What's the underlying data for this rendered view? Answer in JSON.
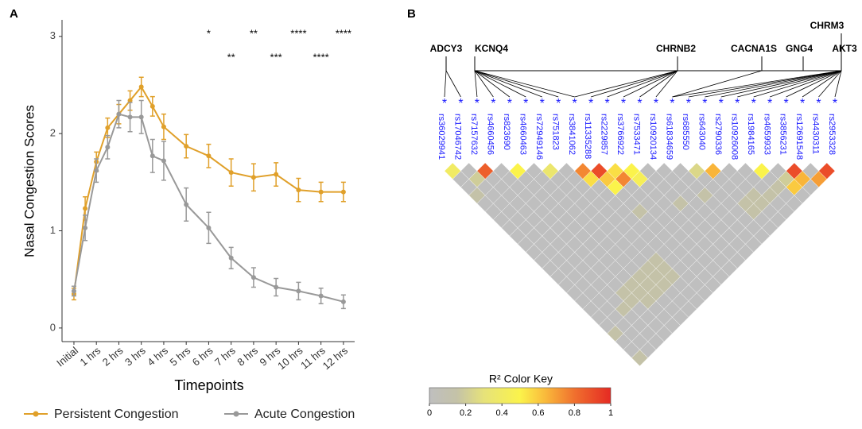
{
  "chart_data": [
    {
      "type": "line",
      "panel": "A",
      "ylabel": "Nasal Congestion Scores",
      "xlabel": "Timepoints",
      "x": [
        0,
        0.5,
        1,
        1.5,
        2,
        2.5,
        3,
        3.5,
        4,
        5,
        6,
        7,
        8,
        9,
        10,
        11,
        12
      ],
      "xlim": [
        -0.53,
        12.5
      ],
      "ylim": [
        -0.14,
        3.17
      ],
      "xticks": [
        {
          "value": 0,
          "label": "Initial"
        },
        {
          "value": 1,
          "label": "1 hrs"
        },
        {
          "value": 2,
          "label": "2 hrs"
        },
        {
          "value": 3,
          "label": "3 hrs"
        },
        {
          "value": 4,
          "label": "4 hrs"
        },
        {
          "value": 5,
          "label": "5 hrs"
        },
        {
          "value": 6,
          "label": "6 hrs"
        },
        {
          "value": 7,
          "label": "7 hrs"
        },
        {
          "value": 8,
          "label": "8 hrs"
        },
        {
          "value": 9,
          "label": "9 hrs"
        },
        {
          "value": 10,
          "label": "10 hrs"
        },
        {
          "value": 11,
          "label": "11 hrs"
        },
        {
          "value": 12,
          "label": "12 hrs"
        }
      ],
      "yticks": [
        0,
        1,
        2,
        3
      ],
      "series": [
        {
          "name": "Persistent Congestion",
          "color": "#e0a02a",
          "values": [
            0.35,
            1.23,
            1.71,
            2.06,
            2.2,
            2.34,
            2.48,
            2.28,
            2.07,
            1.87,
            1.77,
            1.6,
            1.55,
            1.58,
            1.42,
            1.4,
            1.4
          ],
          "errors": [
            0.06,
            0.12,
            0.1,
            0.1,
            0.1,
            0.1,
            0.1,
            0.1,
            0.13,
            0.12,
            0.12,
            0.14,
            0.14,
            0.12,
            0.12,
            0.1,
            0.1
          ]
        },
        {
          "name": "Acute Congestion",
          "color": "#999999",
          "values": [
            0.38,
            1.03,
            1.62,
            1.86,
            2.2,
            2.17,
            2.17,
            1.77,
            1.72,
            1.27,
            1.03,
            0.72,
            0.52,
            0.42,
            0.38,
            0.33,
            0.27
          ],
          "errors": [
            0.05,
            0.13,
            0.12,
            0.12,
            0.14,
            0.15,
            0.17,
            0.17,
            0.2,
            0.17,
            0.16,
            0.11,
            0.1,
            0.09,
            0.09,
            0.08,
            0.07
          ]
        }
      ],
      "annotations": [
        {
          "x": 6,
          "text": "*"
        },
        {
          "x": 7,
          "text": "**"
        },
        {
          "x": 8,
          "text": "**"
        },
        {
          "x": 9,
          "text": "***"
        },
        {
          "x": 10,
          "text": "****"
        },
        {
          "x": 11,
          "text": "****"
        },
        {
          "x": 12,
          "text": "****"
        }
      ]
    },
    {
      "type": "ld_heatmap",
      "panel": "B",
      "snps": [
        "rs36029941",
        "rs17046742",
        "rs7157632",
        "rs4660456",
        "rs823690",
        "rs4660463",
        "rs72949146",
        "rs751823",
        "rs3841062",
        "rs11335288",
        "rs2229857",
        "rs3766922",
        "rs7533471",
        "rs10920134",
        "rs61834659",
        "rs685550",
        "rs643040",
        "rs2790336",
        "rs10926008",
        "rs1984165",
        "rs4659933",
        "rs3856231",
        "rs12691548",
        "rs4430311",
        "rs2953328"
      ],
      "genes": [
        {
          "name": "ADCY3",
          "snps": [
            0,
            1
          ]
        },
        {
          "name": "KCNQ4",
          "snps": [
            2,
            3,
            4,
            5,
            6,
            7,
            8
          ]
        },
        {
          "name": "CHRNB2",
          "snps": [
            8,
            9,
            10,
            11,
            12,
            13
          ]
        },
        {
          "name": "CACNA1S",
          "snps": [
            14
          ]
        },
        {
          "name": "GNG4",
          "snps": []
        },
        {
          "name": "CHRM3",
          "snps": []
        },
        {
          "name": "AKT3",
          "snps": [
            14,
            15,
            16,
            17,
            18,
            19,
            20,
            21,
            22,
            23,
            24
          ]
        }
      ],
      "r2": [
        [
          0.4,
          0,
          0.85,
          0,
          0.5,
          0,
          0.35,
          0,
          0.75,
          0.9,
          0.55,
          0.5,
          0,
          0,
          0,
          0.25,
          0.65,
          0,
          0,
          0.5,
          0,
          0.9,
          0,
          0.9
        ],
        [
          0,
          0.2,
          0,
          0,
          0,
          0,
          0,
          0,
          0.55,
          0.6,
          0.75,
          0.45,
          0,
          0,
          0,
          0,
          0,
          0,
          0,
          0,
          0.2,
          0.65,
          0.7
        ],
        [
          0,
          0,
          0,
          0,
          0,
          0,
          0,
          0,
          0,
          0.5,
          0,
          0,
          0,
          0,
          0,
          0,
          0,
          0,
          0,
          0.15,
          0.6,
          0
        ],
        [
          0.15,
          0,
          0,
          0,
          0,
          0,
          0,
          0,
          0,
          0,
          0,
          0,
          0,
          0,
          0.15,
          0,
          0,
          0.15,
          0.15,
          0,
          0
        ],
        [
          0,
          0,
          0,
          0,
          0,
          0,
          0,
          0,
          0,
          0,
          0,
          0,
          0.15,
          0,
          0,
          0,
          0.15,
          0.15,
          0,
          0
        ],
        [
          0,
          0,
          0,
          0,
          0,
          0,
          0,
          0,
          0,
          0.15,
          0,
          0,
          0,
          0,
          0,
          0,
          0.15,
          0,
          0
        ],
        [
          0,
          0,
          0,
          0,
          0,
          0,
          0,
          0,
          0,
          0,
          0,
          0,
          0,
          0,
          0,
          0,
          0,
          0
        ],
        [
          0,
          0,
          0,
          0,
          0,
          0,
          0,
          0,
          0,
          0,
          0,
          0,
          0,
          0,
          0,
          0,
          0
        ],
        [
          0,
          0,
          0,
          0,
          0,
          0,
          0,
          0,
          0,
          0,
          0,
          0,
          0,
          0,
          0,
          0
        ],
        [
          0,
          0,
          0,
          0,
          0,
          0,
          0,
          0,
          0,
          0,
          0,
          0,
          0,
          0,
          0
        ],
        [
          0,
          0,
          0,
          0,
          0,
          0,
          0,
          0,
          0,
          0,
          0,
          0,
          0,
          0
        ],
        [
          0,
          0,
          0,
          0,
          0,
          0,
          0,
          0.15,
          0,
          0,
          0,
          0,
          0
        ],
        [
          0,
          0,
          0,
          0,
          0,
          0,
          0.15,
          0.15,
          0,
          0,
          0,
          0
        ],
        [
          0,
          0,
          0,
          0,
          0,
          0.15,
          0.15,
          0.15,
          0,
          0,
          0
        ],
        [
          0,
          0,
          0,
          0,
          0.15,
          0.15,
          0.15,
          0,
          0,
          0
        ],
        [
          0,
          0,
          0,
          0.15,
          0.15,
          0.15,
          0,
          0,
          0
        ],
        [
          0,
          0,
          0,
          0.15,
          0.15,
          0,
          0,
          0
        ],
        [
          0,
          0,
          0.15,
          0,
          0,
          0,
          0
        ],
        [
          0,
          0,
          0,
          0,
          0,
          0
        ],
        [
          0,
          0,
          0,
          0,
          0
        ],
        [
          0.15,
          0,
          0,
          0
        ],
        [
          0,
          0,
          0
        ],
        [
          0,
          0
        ],
        [
          0.15
        ]
      ],
      "key_title": "R² Color Key",
      "key_ticks": [
        0,
        0.2,
        0.4,
        0.6,
        0.8,
        1
      ]
    }
  ]
}
